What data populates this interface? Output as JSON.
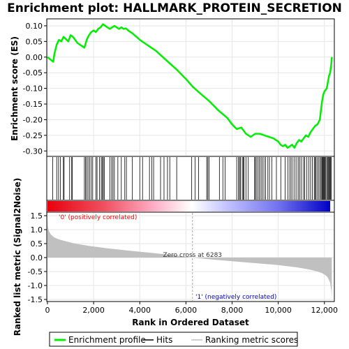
{
  "title": "Enrichment plot: HALLMARK_PROTEIN_SECRETION",
  "colors": {
    "es_line": "#00ee00",
    "hits": "#000000",
    "metric_fill": "#c0c0c0",
    "pos_label": "#ff0000",
    "neg_label": "#0000cc",
    "zero_cross_line": "#aaaaaa"
  },
  "chart_data": [
    {
      "type": "line",
      "panel": "enrichment",
      "ylabel": "Enrichment score (ES)",
      "xlim": [
        0,
        12400
      ],
      "ylim": [
        -0.315,
        0.12
      ],
      "yticks": [
        0.1,
        0.05,
        0.0,
        -0.05,
        -0.1,
        -0.15,
        -0.2,
        -0.25,
        -0.3
      ],
      "ytick_labels": [
        "0.10",
        "0.05",
        "0.00",
        "-0.05",
        "-0.10",
        "-0.15",
        "-0.20",
        "-0.25",
        "-0.30"
      ],
      "grid": true,
      "series": [
        {
          "name": "Enrichment profile",
          "x": [
            0,
            250,
            300,
            400,
            500,
            600,
            700,
            900,
            1000,
            1100,
            1300,
            1600,
            1700,
            1800,
            1900,
            2000,
            2100,
            2200,
            2300,
            2400,
            2500,
            2600,
            2700,
            2800,
            2900,
            3000,
            3100,
            3200,
            3300,
            3400,
            3500,
            3700,
            4000,
            4300,
            4700,
            5000,
            5300,
            5600,
            6000,
            6300,
            6600,
            7000,
            7400,
            7800,
            8000,
            8200,
            8400,
            8600,
            8800,
            9000,
            9200,
            9400,
            9600,
            9800,
            10000,
            10100,
            10200,
            10300,
            10400,
            10500,
            10600,
            10700,
            10800,
            10900,
            11000,
            11100,
            11200,
            11300,
            11400,
            11500,
            11600,
            11700,
            11800,
            11850,
            11900,
            11950,
            12000,
            12100,
            12150,
            12200,
            12250,
            12300,
            12320
          ],
          "y": [
            0.0,
            -0.015,
            0.01,
            0.04,
            0.055,
            0.05,
            0.065,
            0.05,
            0.07,
            0.065,
            0.045,
            0.03,
            0.055,
            0.07,
            0.08,
            0.085,
            0.08,
            0.09,
            0.095,
            0.105,
            0.1,
            0.095,
            0.09,
            0.095,
            0.1,
            0.095,
            0.09,
            0.095,
            0.09,
            0.092,
            0.085,
            0.075,
            0.055,
            0.04,
            0.02,
            0.0,
            -0.02,
            -0.04,
            -0.07,
            -0.095,
            -0.115,
            -0.14,
            -0.17,
            -0.195,
            -0.215,
            -0.23,
            -0.225,
            -0.245,
            -0.255,
            -0.245,
            -0.245,
            -0.25,
            -0.255,
            -0.26,
            -0.27,
            -0.28,
            -0.285,
            -0.28,
            -0.29,
            -0.285,
            -0.28,
            -0.29,
            -0.275,
            -0.265,
            -0.27,
            -0.26,
            -0.25,
            -0.255,
            -0.24,
            -0.23,
            -0.22,
            -0.215,
            -0.2,
            -0.17,
            -0.14,
            -0.12,
            -0.11,
            -0.1,
            -0.08,
            -0.06,
            -0.05,
            -0.02,
            0.0
          ]
        }
      ]
    },
    {
      "type": "area",
      "panel": "ranked_metric",
      "xlabel": "Rank in Ordered Dataset",
      "ylabel": "Ranked list metric (Signal2Noise)",
      "xlim": [
        0,
        12400
      ],
      "ylim": [
        -1.55,
        1.6
      ],
      "xticks": [
        0,
        2000,
        4000,
        6000,
        8000,
        10000,
        12000
      ],
      "xtick_labels": [
        "0",
        "2,000",
        "4,000",
        "6,000",
        "8,000",
        "10,000",
        "12,000"
      ],
      "yticks": [
        1.5,
        1.0,
        0.5,
        0.0,
        -0.5,
        -1.0,
        -1.5
      ],
      "ytick_labels": [
        "1.5",
        "1.0",
        "0.5",
        "0.0",
        "-0.5",
        "-1.0",
        "-1.5"
      ],
      "grid": true,
      "series": [
        {
          "name": "Ranking metric scores",
          "x": [
            0,
            20,
            60,
            150,
            300,
            500,
            800,
            1200,
            1800,
            2500,
            3500,
            4500,
            5500,
            6283,
            7000,
            8000,
            9000,
            10000,
            10800,
            11300,
            11700,
            11900,
            12050,
            12150,
            12250,
            12300,
            12320
          ],
          "y": [
            1.45,
            1.1,
            0.95,
            0.82,
            0.72,
            0.65,
            0.58,
            0.5,
            0.42,
            0.34,
            0.25,
            0.17,
            0.08,
            0.0,
            -0.06,
            -0.13,
            -0.2,
            -0.27,
            -0.35,
            -0.42,
            -0.5,
            -0.56,
            -0.63,
            -0.72,
            -0.9,
            -1.2,
            -1.45
          ]
        }
      ],
      "annotations": {
        "zero_cross": "Zero cross at 6283",
        "zero_cross_rank": 6283,
        "positive_label": "'0' (positively correlated)",
        "negative_label": "'1' (negatively correlated)"
      }
    }
  ],
  "hits": [
    230,
    400,
    480,
    560,
    690,
    720,
    960,
    1050,
    1080,
    1600,
    1650,
    1700,
    1760,
    1830,
    1900,
    1960,
    2100,
    2150,
    2250,
    2330,
    2380,
    2420,
    2460,
    2700,
    2780,
    2840,
    2900,
    3050,
    3200,
    3350,
    3420,
    3680,
    4000,
    4120,
    4420,
    4520,
    4600,
    4900,
    5050,
    5200,
    5300,
    5600,
    6250,
    6400,
    6550,
    6900,
    6950,
    7000,
    7450,
    7600,
    7700,
    8200,
    8280,
    8320,
    8360,
    8440,
    8480,
    8520,
    8600,
    8700,
    8980,
    9000,
    9050,
    9120,
    9180,
    9250,
    9310,
    9380,
    9450,
    9550,
    9620,
    9720,
    9920,
    10110,
    10300,
    10420,
    10500,
    10560,
    10640,
    10720,
    10800,
    10880,
    10940,
    11010,
    11100,
    11150,
    11240,
    11320,
    11400,
    11480,
    11560,
    11600,
    11640,
    11700,
    11760,
    11820,
    11860,
    11900,
    11930,
    11960,
    11990,
    12020,
    12060,
    12100,
    12140,
    12180,
    12210,
    12240,
    12270,
    12300
  ],
  "legend": {
    "items": [
      {
        "label": "Enrichment profile",
        "color": "#00ee00",
        "style": "thick"
      },
      {
        "label": "Hits",
        "color": "#000000",
        "style": "thin"
      },
      {
        "label": "Ranking metric scores",
        "color": "#c0c0c0",
        "style": "thin"
      }
    ]
  }
}
